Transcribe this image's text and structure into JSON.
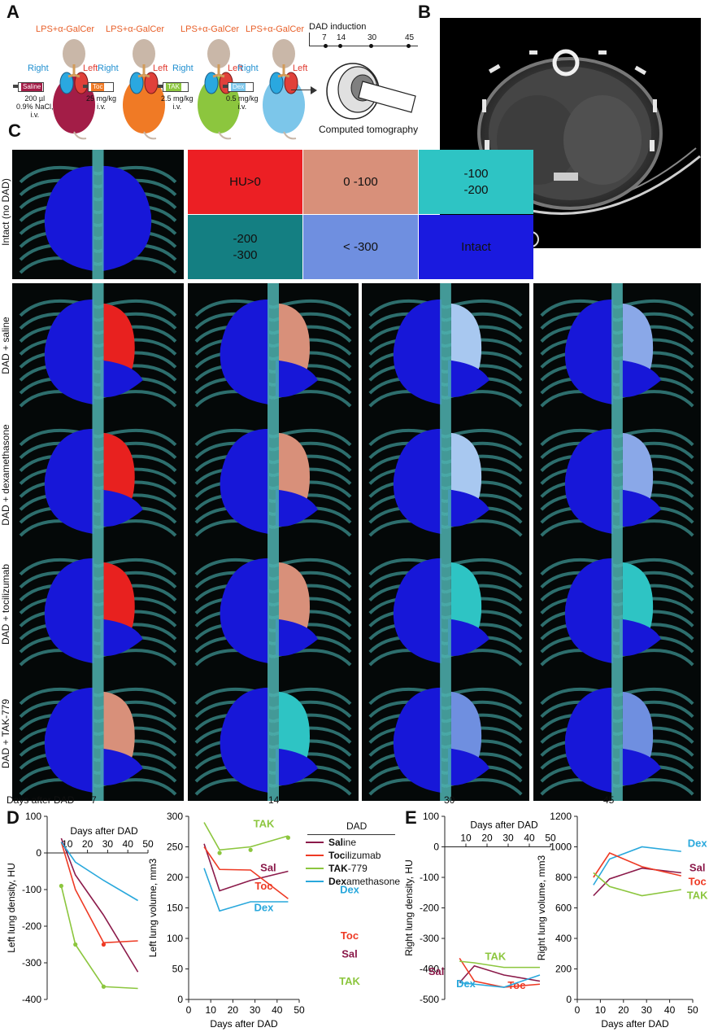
{
  "panels": {
    "a": "A",
    "b": "B",
    "c": "C",
    "d": "D",
    "e": "E"
  },
  "panel_a": {
    "mice": [
      {
        "treatment_top": "LPS+α-GalCer",
        "right": "Right",
        "left": "Left",
        "syringe": "Saline",
        "dose": "200 µl\n0.9% NaCl,\ni.v.",
        "body_color": "#a31d47"
      },
      {
        "treatment_top": "LPS+α-GalCer",
        "right": "Right",
        "left": "Left",
        "syringe": "Toc",
        "dose": "25 mg/kg\ni.v.",
        "body_color": "#f07a25"
      },
      {
        "treatment_top": "LPS+α-GalCer",
        "right": "Right",
        "left": "Left",
        "syringe": "TAK",
        "dose": "2.5 mg/kg\ni.v.",
        "body_color": "#8cc63e"
      },
      {
        "treatment_top": "LPS+α-GalCer",
        "right": "Right",
        "left": "Left",
        "syringe": "Dex",
        "dose": "0.5 mg/kg\ni.v.",
        "body_color": "#7cc6ea"
      }
    ],
    "timeline_title": "DAD induction",
    "timeline_days": [
      "7",
      "14",
      "30",
      "45"
    ],
    "ct_caption": "Computed tomography"
  },
  "panel_c": {
    "legend_cells": [
      {
        "text": "HU>0",
        "color": "#ec1f24"
      },
      {
        "text": "0 -100",
        "color": "#d8907a"
      },
      {
        "text": "-100\n-200",
        "color": "#2ec4c4"
      },
      {
        "text": "-200\n-300",
        "color": "#147f82"
      },
      {
        "text": "< -300",
        "color": "#6f8fe0"
      },
      {
        "text": "Intact",
        "color": "#1a1adf"
      }
    ],
    "row_labels": [
      "Intact (no DAD)",
      "DAD + saline",
      "DAD + dexamethasone",
      "DAD + tocilizumab",
      "DAD + TAK-779"
    ],
    "axis_title": "Days after DAD",
    "days": [
      "7",
      "14",
      "30",
      "45"
    ],
    "lesion_colors": [
      [
        "#e8211f",
        "#d8907a",
        "#a8c8f0",
        "#8aa8e8"
      ],
      [
        "#e8211f",
        "#d8907a",
        "#a8c8f0",
        "#8aa8e8"
      ],
      [
        "#e8211f",
        "#d8907a",
        "#2ec4c4",
        "#2ec4c4"
      ],
      [
        "#d8907a",
        "#2ec4c4",
        "#6f8fe0",
        "#6f8fe0"
      ]
    ]
  },
  "legend_box": {
    "title": "DAD",
    "items": [
      {
        "bold": "Sal",
        "rest": "ine",
        "color": "#8b1a4a"
      },
      {
        "bold": "Toc",
        "rest": "ilizumab",
        "color": "#ee3a24"
      },
      {
        "bold": "TAK",
        "rest": "-779",
        "color": "#8cc63e"
      },
      {
        "bold": "Dex",
        "rest": "amethasone",
        "color": "#29a8dc"
      }
    ]
  },
  "chart_data": [
    {
      "type": "line",
      "xlabel": "Days after DAD",
      "ylabel": "Left lung density, HU",
      "xlim": [
        0,
        50
      ],
      "ylim": [
        -400,
        100
      ],
      "xticks": [
        "10",
        "20",
        "30",
        "40",
        "50"
      ],
      "yticks": [
        "100",
        "0",
        "-100",
        "-200",
        "-300",
        "-400"
      ],
      "series": [
        {
          "name": "Sal",
          "color": "#8b1a4a",
          "x": [
            7,
            14,
            28,
            45
          ],
          "y": [
            40,
            -60,
            -170,
            -325
          ]
        },
        {
          "name": "Toc",
          "color": "#ee3a24",
          "x": [
            7,
            14,
            28,
            45
          ],
          "y": [
            30,
            -100,
            -245,
            -240
          ]
        },
        {
          "name": "TAK",
          "color": "#8cc63e",
          "x": [
            7,
            14,
            28,
            45
          ],
          "y": [
            -90,
            -250,
            -365,
            -370
          ]
        },
        {
          "name": "Dex",
          "color": "#29a8dc",
          "x": [
            7,
            14,
            28,
            45
          ],
          "y": [
            30,
            -25,
            -75,
            -130
          ]
        }
      ]
    },
    {
      "type": "line",
      "xlabel": "Days after DAD",
      "ylabel": "Left lung volume, mm3",
      "xlim": [
        0,
        50
      ],
      "ylim": [
        0,
        300
      ],
      "xticks": [
        "0",
        "10",
        "20",
        "30",
        "40",
        "50"
      ],
      "yticks": [
        "0",
        "50",
        "100",
        "150",
        "200",
        "250",
        "300"
      ],
      "series": [
        {
          "name": "Sal",
          "color": "#8b1a4a",
          "x": [
            7,
            14,
            28,
            45
          ],
          "y": [
            255,
            178,
            195,
            210
          ]
        },
        {
          "name": "Toc",
          "color": "#ee3a24",
          "x": [
            7,
            14,
            28,
            45
          ],
          "y": [
            250,
            213,
            212,
            165
          ]
        },
        {
          "name": "TAK",
          "color": "#8cc63e",
          "x": [
            7,
            14,
            28,
            45
          ],
          "y": [
            290,
            245,
            250,
            268
          ]
        },
        {
          "name": "Dex",
          "color": "#29a8dc",
          "x": [
            7,
            14,
            28,
            45
          ],
          "y": [
            215,
            145,
            160,
            160
          ]
        }
      ]
    },
    {
      "type": "line",
      "xlabel": "Days after DAD",
      "ylabel": "Right lung density, HU",
      "xlim": [
        0,
        50
      ],
      "ylim": [
        -500,
        100
      ],
      "xticks": [
        "10",
        "20",
        "30",
        "40",
        "50"
      ],
      "yticks": [
        "100",
        "0",
        "-100",
        "-200",
        "-300",
        "-400",
        "-500"
      ],
      "series": [
        {
          "name": "Sal",
          "color": "#8b1a4a",
          "x": [
            7,
            14,
            28,
            45
          ],
          "y": [
            -445,
            -390,
            -420,
            -440
          ]
        },
        {
          "name": "Toc",
          "color": "#ee3a24",
          "x": [
            7,
            14,
            28,
            45
          ],
          "y": [
            -365,
            -440,
            -460,
            -450
          ]
        },
        {
          "name": "TAK",
          "color": "#8cc63e",
          "x": [
            7,
            14,
            28,
            45
          ],
          "y": [
            -375,
            -380,
            -395,
            -395
          ]
        },
        {
          "name": "Dex",
          "color": "#29a8dc",
          "x": [
            7,
            14,
            28,
            45
          ],
          "y": [
            -445,
            -450,
            -460,
            -420
          ]
        }
      ]
    },
    {
      "type": "line",
      "xlabel": "Days after DAD",
      "ylabel": "Right lung volume, mm3",
      "xlim": [
        0,
        50
      ],
      "ylim": [
        0,
        1200
      ],
      "xticks": [
        "0",
        "10",
        "20",
        "30",
        "40",
        "50"
      ],
      "yticks": [
        "0",
        "200",
        "400",
        "600",
        "800",
        "1000",
        "1200"
      ],
      "series": [
        {
          "name": "Dex",
          "color": "#29a8dc",
          "x": [
            7,
            14,
            28,
            45
          ],
          "y": [
            750,
            920,
            1000,
            970
          ]
        },
        {
          "name": "Sal",
          "color": "#8b1a4a",
          "x": [
            7,
            14,
            28,
            45
          ],
          "y": [
            680,
            790,
            860,
            830
          ]
        },
        {
          "name": "Toc",
          "color": "#ee3a24",
          "x": [
            7,
            14,
            28,
            45
          ],
          "y": [
            800,
            960,
            870,
            810
          ]
        },
        {
          "name": "TAK",
          "color": "#8cc63e",
          "x": [
            7,
            14,
            28,
            45
          ],
          "y": [
            830,
            740,
            680,
            720
          ]
        }
      ]
    }
  ]
}
